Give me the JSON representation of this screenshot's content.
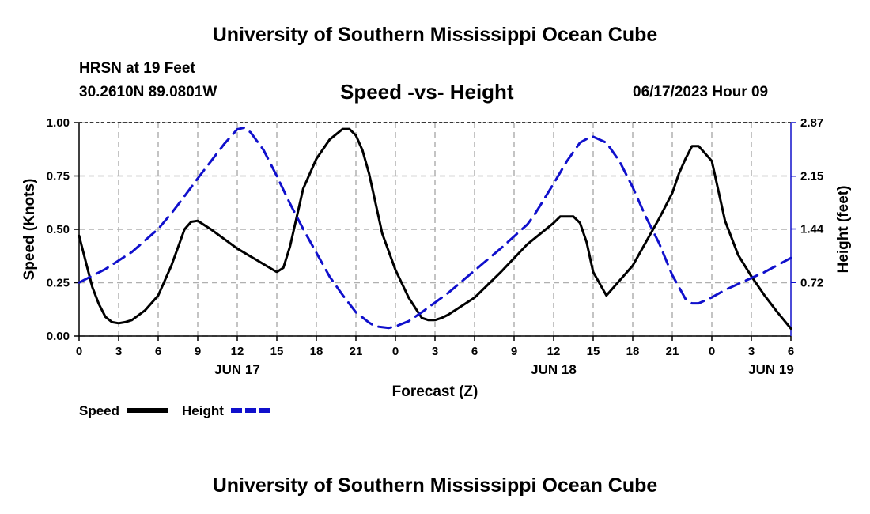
{
  "header": {
    "title": "University of Southern Mississippi Ocean Cube",
    "station": "HRSN at 19 Feet",
    "coords": "30.2610N  89.0801W",
    "chart_title": "Speed -vs- Height",
    "datetime": "06/17/2023 Hour 09"
  },
  "footer": {
    "title": "University of Southern Mississippi Ocean Cube"
  },
  "colors": {
    "speed": "#000000",
    "height": "#1010cc",
    "grid": "#b0b0b0"
  },
  "chart_data": {
    "type": "line",
    "title": "Speed -vs- Height",
    "xlabel": "Forecast (Z)",
    "ylabel": "Speed (Knots)",
    "y2label": "Height (feet)",
    "xlim": [
      0,
      54
    ],
    "ylim": [
      0,
      1
    ],
    "y2lim": [
      0,
      2.87
    ],
    "x_ticks": [
      0,
      3,
      6,
      9,
      12,
      15,
      18,
      21,
      24,
      27,
      30,
      33,
      36,
      39,
      42,
      45,
      48,
      51,
      54
    ],
    "x_tick_labels": [
      "0",
      "3",
      "6",
      "9",
      "12",
      "15",
      "18",
      "21",
      "0",
      "3",
      "6",
      "9",
      "12",
      "15",
      "18",
      "21",
      "0",
      "3",
      "6"
    ],
    "date_labels": [
      {
        "x": 12,
        "label": "JUN 17"
      },
      {
        "x": 36,
        "label": "JUN 18"
      },
      {
        "x": 52.5,
        "label": "JUN 19"
      }
    ],
    "y_ticks": [
      0,
      0.25,
      0.5,
      0.75,
      1.0
    ],
    "y_tick_labels": [
      "0.00",
      "0.25",
      "0.50",
      "0.75",
      "1.00"
    ],
    "y2_ticks": [
      0.72,
      1.44,
      2.15,
      2.87
    ],
    "y2_tick_labels": [
      "0.72",
      "1.44",
      "2.15",
      "2.87"
    ],
    "grid": true,
    "legend": {
      "placement": "bottom-left",
      "items": [
        "Speed",
        "Height"
      ]
    },
    "series": [
      {
        "name": "Speed",
        "axis": "left",
        "x": [
          0,
          0.5,
          1,
          1.5,
          2,
          2.5,
          3,
          3.5,
          4,
          5,
          6,
          7,
          8,
          8.5,
          9,
          10,
          12,
          15,
          15.5,
          16,
          17,
          18,
          19,
          20,
          20.5,
          21,
          21.5,
          22,
          23,
          24,
          25,
          26,
          26.5,
          27,
          27.5,
          28,
          30,
          32,
          34,
          36,
          36.5,
          37,
          37.5,
          38,
          38.5,
          39,
          40,
          42,
          44,
          45,
          45.5,
          46,
          46.5,
          47,
          48,
          49,
          50,
          51,
          52,
          53,
          54
        ],
        "values": [
          0.47,
          0.35,
          0.23,
          0.15,
          0.09,
          0.065,
          0.06,
          0.065,
          0.075,
          0.12,
          0.19,
          0.33,
          0.5,
          0.535,
          0.54,
          0.5,
          0.41,
          0.3,
          0.32,
          0.42,
          0.69,
          0.83,
          0.92,
          0.97,
          0.97,
          0.94,
          0.87,
          0.76,
          0.48,
          0.31,
          0.18,
          0.085,
          0.075,
          0.075,
          0.085,
          0.1,
          0.18,
          0.3,
          0.43,
          0.53,
          0.56,
          0.56,
          0.56,
          0.53,
          0.44,
          0.3,
          0.19,
          0.33,
          0.55,
          0.67,
          0.76,
          0.83,
          0.89,
          0.89,
          0.82,
          0.54,
          0.38,
          0.28,
          0.19,
          0.11,
          0.035
        ]
      },
      {
        "name": "Height",
        "axis": "right",
        "x": [
          0,
          2,
          4,
          6,
          7,
          8,
          9,
          10,
          11,
          12,
          12.5,
          13,
          14,
          15,
          16,
          17,
          18,
          19,
          20,
          21,
          22,
          22.5,
          23,
          23.5,
          24,
          25,
          26,
          28,
          30,
          32,
          34,
          34.5,
          35,
          36,
          37,
          38,
          38.5,
          39,
          40,
          41,
          42,
          43,
          44,
          45,
          46,
          46.5,
          47,
          48,
          49,
          50,
          51,
          52,
          54
        ],
        "values": [
          0.72,
          0.9,
          1.13,
          1.44,
          1.65,
          1.88,
          2.12,
          2.35,
          2.58,
          2.78,
          2.8,
          2.74,
          2.5,
          2.15,
          1.78,
          1.44,
          1.12,
          0.8,
          0.55,
          0.32,
          0.18,
          0.13,
          0.12,
          0.11,
          0.13,
          0.2,
          0.32,
          0.58,
          0.88,
          1.18,
          1.5,
          1.62,
          1.76,
          2.05,
          2.35,
          2.6,
          2.65,
          2.68,
          2.6,
          2.35,
          2.0,
          1.6,
          1.25,
          0.82,
          0.5,
          0.44,
          0.44,
          0.52,
          0.62,
          0.7,
          0.78,
          0.86,
          1.05
        ]
      }
    ]
  }
}
